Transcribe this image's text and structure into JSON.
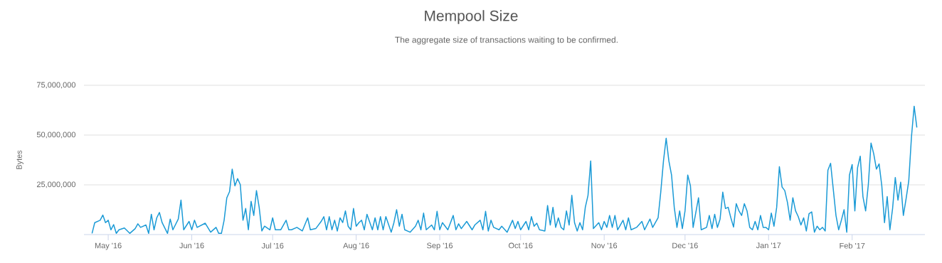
{
  "chart_data": {
    "type": "line",
    "title": "Mempool Size",
    "subtitle": "The aggregate size of transactions waiting to be confirmed.",
    "ylabel": "Bytes",
    "x": [
      "2016-04-25",
      "2016-04-26",
      "2016-04-28",
      "2016-04-29",
      "2016-04-30",
      "2016-05-01",
      "2016-05-02",
      "2016-05-03",
      "2016-05-04",
      "2016-05-05",
      "2016-05-07",
      "2016-05-09",
      "2016-05-11",
      "2016-05-12",
      "2016-05-13",
      "2016-05-15",
      "2016-05-16",
      "2016-05-17",
      "2016-05-18",
      "2016-05-19",
      "2016-05-20",
      "2016-05-21",
      "2016-05-23",
      "2016-05-24",
      "2016-05-25",
      "2016-05-27",
      "2016-05-28",
      "2016-05-29",
      "2016-05-31",
      "2016-06-01",
      "2016-06-02",
      "2016-06-03",
      "2016-06-06",
      "2016-06-08",
      "2016-06-10",
      "2016-06-11",
      "2016-06-12",
      "2016-06-13",
      "2016-06-14",
      "2016-06-15",
      "2016-06-16",
      "2016-06-17",
      "2016-06-18",
      "2016-06-19",
      "2016-06-20",
      "2016-06-21",
      "2016-06-22",
      "2016-06-23",
      "2016-06-24",
      "2016-06-25",
      "2016-06-26",
      "2016-06-27",
      "2016-06-28",
      "2016-06-30",
      "2016-07-01",
      "2016-07-02",
      "2016-07-04",
      "2016-07-06",
      "2016-07-07",
      "2016-07-08",
      "2016-07-10",
      "2016-07-12",
      "2016-07-14",
      "2016-07-15",
      "2016-07-17",
      "2016-07-19",
      "2016-07-20",
      "2016-07-21",
      "2016-07-22",
      "2016-07-23",
      "2016-07-24",
      "2016-07-25",
      "2016-07-26",
      "2016-07-27",
      "2016-07-28",
      "2016-07-29",
      "2016-07-30",
      "2016-07-31",
      "2016-08-01",
      "2016-08-02",
      "2016-08-03",
      "2016-08-04",
      "2016-08-05",
      "2016-08-07",
      "2016-08-08",
      "2016-08-09",
      "2016-08-10",
      "2016-08-11",
      "2016-08-12",
      "2016-08-14",
      "2016-08-15",
      "2016-08-16",
      "2016-08-17",
      "2016-08-18",
      "2016-08-19",
      "2016-08-21",
      "2016-08-23",
      "2016-08-24",
      "2016-08-25",
      "2016-08-26",
      "2016-08-27",
      "2016-08-29",
      "2016-08-30",
      "2016-08-31",
      "2016-09-01",
      "2016-09-02",
      "2016-09-04",
      "2016-09-06",
      "2016-09-07",
      "2016-09-08",
      "2016-09-09",
      "2016-09-11",
      "2016-09-13",
      "2016-09-14",
      "2016-09-16",
      "2016-09-17",
      "2016-09-18",
      "2016-09-19",
      "2016-09-20",
      "2016-09-21",
      "2016-09-23",
      "2016-09-24",
      "2016-09-26",
      "2016-09-28",
      "2016-09-29",
      "2016-09-30",
      "2016-10-01",
      "2016-10-03",
      "2016-10-04",
      "2016-10-05",
      "2016-10-06",
      "2016-10-07",
      "2016-10-08",
      "2016-10-10",
      "2016-10-11",
      "2016-10-12",
      "2016-10-13",
      "2016-10-14",
      "2016-10-15",
      "2016-10-16",
      "2016-10-17",
      "2016-10-18",
      "2016-10-19",
      "2016-10-20",
      "2016-10-21",
      "2016-10-22",
      "2016-10-23",
      "2016-10-24",
      "2016-10-25",
      "2016-10-26",
      "2016-10-27",
      "2016-10-28",
      "2016-10-30",
      "2016-10-31",
      "2016-11-01",
      "2016-11-02",
      "2016-11-03",
      "2016-11-04",
      "2016-11-05",
      "2016-11-06",
      "2016-11-08",
      "2016-11-09",
      "2016-11-10",
      "2016-11-11",
      "2016-11-13",
      "2016-11-15",
      "2016-11-16",
      "2016-11-18",
      "2016-11-19",
      "2016-11-21",
      "2016-11-22",
      "2016-11-23",
      "2016-11-24",
      "2016-11-25",
      "2016-11-26",
      "2016-11-27",
      "2016-11-28",
      "2016-11-29",
      "2016-11-30",
      "2016-12-01",
      "2016-12-02",
      "2016-12-03",
      "2016-12-04",
      "2016-12-06",
      "2016-12-07",
      "2016-12-09",
      "2016-12-10",
      "2016-12-11",
      "2016-12-12",
      "2016-12-13",
      "2016-12-14",
      "2016-12-15",
      "2016-12-16",
      "2016-12-17",
      "2016-12-18",
      "2016-12-19",
      "2016-12-20",
      "2016-12-21",
      "2016-12-22",
      "2016-12-23",
      "2016-12-24",
      "2016-12-25",
      "2016-12-26",
      "2016-12-27",
      "2016-12-28",
      "2016-12-29",
      "2016-12-30",
      "2016-12-31",
      "2017-01-01",
      "2017-01-02",
      "2017-01-03",
      "2017-01-04",
      "2017-01-05",
      "2017-01-06",
      "2017-01-07",
      "2017-01-08",
      "2017-01-09",
      "2017-01-10",
      "2017-01-11",
      "2017-01-12",
      "2017-01-13",
      "2017-01-14",
      "2017-01-15",
      "2017-01-16",
      "2017-01-17",
      "2017-01-18",
      "2017-01-19",
      "2017-01-20",
      "2017-01-21",
      "2017-01-22",
      "2017-01-23",
      "2017-01-24",
      "2017-01-25",
      "2017-01-26",
      "2017-01-27",
      "2017-01-28",
      "2017-01-29",
      "2017-01-30",
      "2017-01-31",
      "2017-02-01",
      "2017-02-02",
      "2017-02-03",
      "2017-02-04",
      "2017-02-05",
      "2017-02-06",
      "2017-02-07",
      "2017-02-08",
      "2017-02-09",
      "2017-02-10",
      "2017-02-11",
      "2017-02-12",
      "2017-02-13",
      "2017-02-14",
      "2017-02-15",
      "2017-02-16",
      "2017-02-17",
      "2017-02-18",
      "2017-02-19",
      "2017-02-20",
      "2017-02-21",
      "2017-02-22",
      "2017-02-23",
      "2017-02-24",
      "2017-02-25"
    ],
    "values": [
      600000,
      6000000,
      7200000,
      9800000,
      6000000,
      7200000,
      2400000,
      5000000,
      600000,
      2400000,
      3300000,
      600000,
      3000000,
      5400000,
      3600000,
      4800000,
      600000,
      10200000,
      2400000,
      8400000,
      11100000,
      6000000,
      600000,
      7800000,
      2400000,
      7800000,
      17300000,
      2400000,
      6600000,
      2400000,
      7200000,
      3600000,
      5700000,
      1200000,
      3600000,
      600000,
      600000,
      7200000,
      18500000,
      21500000,
      32900000,
      24500000,
      28100000,
      25100000,
      7200000,
      13100000,
      2400000,
      16700000,
      9600000,
      22100000,
      13700000,
      1800000,
      4200000,
      2400000,
      8400000,
      2400000,
      2400000,
      7200000,
      2400000,
      2400000,
      3600000,
      1800000,
      8400000,
      2400000,
      3000000,
      6600000,
      9000000,
      2400000,
      9000000,
      2400000,
      7200000,
      1800000,
      8400000,
      6000000,
      11900000,
      4200000,
      2400000,
      13100000,
      4200000,
      6000000,
      7200000,
      2400000,
      10200000,
      2400000,
      8400000,
      2400000,
      9000000,
      2400000,
      9000000,
      1200000,
      6000000,
      12500000,
      4200000,
      10200000,
      2400000,
      1200000,
      4200000,
      7200000,
      2400000,
      10800000,
      2400000,
      4800000,
      2400000,
      11700000,
      2400000,
      6000000,
      2400000,
      9600000,
      2400000,
      5400000,
      3000000,
      6600000,
      2400000,
      4800000,
      7200000,
      2400000,
      11700000,
      1800000,
      7200000,
      3600000,
      2400000,
      4200000,
      1200000,
      7200000,
      3000000,
      6600000,
      2400000,
      6600000,
      2400000,
      9000000,
      4200000,
      5700000,
      2400000,
      1800000,
      14600000,
      4800000,
      13700000,
      3600000,
      8400000,
      3600000,
      2400000,
      11900000,
      4800000,
      19700000,
      6000000,
      1800000,
      6000000,
      2400000,
      13700000,
      19700000,
      37000000,
      3000000,
      6000000,
      2400000,
      6600000,
      3600000,
      9600000,
      3600000,
      9600000,
      2400000,
      7200000,
      2400000,
      8400000,
      2400000,
      3600000,
      6600000,
      2400000,
      7800000,
      3600000,
      8400000,
      21500000,
      37000000,
      48400000,
      37000000,
      29900000,
      13700000,
      3600000,
      11900000,
      3000000,
      11900000,
      29900000,
      24500000,
      3600000,
      18500000,
      2400000,
      3600000,
      9600000,
      3000000,
      10200000,
      3600000,
      7800000,
      21300000,
      13100000,
      13700000,
      8400000,
      3800000,
      15500000,
      11900000,
      9600000,
      15500000,
      11900000,
      3600000,
      2400000,
      6600000,
      2400000,
      9600000,
      3600000,
      3600000,
      2400000,
      10800000,
      4200000,
      13700000,
      34100000,
      23900000,
      22100000,
      16100000,
      7200000,
      18500000,
      11900000,
      9000000,
      4800000,
      8400000,
      1800000,
      10500000,
      11400000,
      1200000,
      4200000,
      2400000,
      3600000,
      1800000,
      32300000,
      35800000,
      22700000,
      9600000,
      2400000,
      7200000,
      12500000,
      1200000,
      29900000,
      35200000,
      11900000,
      33500000,
      39400000,
      19100000,
      11900000,
      25100000,
      46000000,
      40600000,
      32900000,
      35500000,
      24500000,
      6000000,
      19100000,
      2400000,
      13100000,
      28700000,
      17300000,
      26300000,
      9600000,
      17900000,
      26900000,
      49000000,
      64500000,
      53800000
    ],
    "color": "#1a9ad6",
    "xlim": [
      "2016-04-22",
      "2017-02-28"
    ],
    "ylim": [
      0,
      75000000
    ],
    "xticks": [
      {
        "value": "2016-05-01",
        "label": "May '16"
      },
      {
        "value": "2016-06-01",
        "label": "Jun '16"
      },
      {
        "value": "2016-07-01",
        "label": "Jul '16"
      },
      {
        "value": "2016-08-01",
        "label": "Aug '16"
      },
      {
        "value": "2016-09-01",
        "label": "Sep '16"
      },
      {
        "value": "2016-10-01",
        "label": "Oct '16"
      },
      {
        "value": "2016-11-01",
        "label": "Nov '16"
      },
      {
        "value": "2016-12-01",
        "label": "Dec '16"
      },
      {
        "value": "2017-01-01",
        "label": "Jan '17"
      },
      {
        "value": "2017-02-01",
        "label": "Feb '17"
      }
    ],
    "yticks": [
      {
        "value": 25000000,
        "label": "25,000,000"
      },
      {
        "value": 50000000,
        "label": "50,000,000"
      },
      {
        "value": 75000000,
        "label": "75,000,000"
      }
    ],
    "grid": "y"
  }
}
